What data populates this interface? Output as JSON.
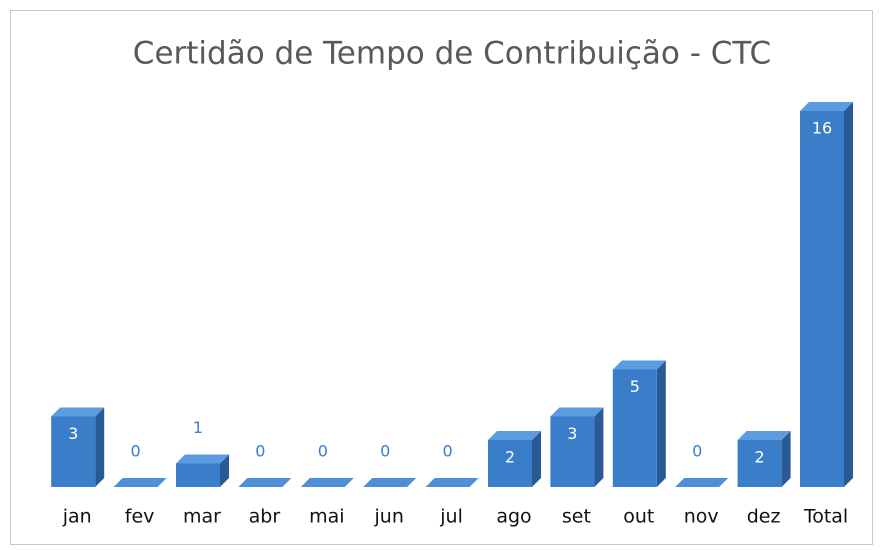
{
  "chart_data": {
    "type": "bar3d",
    "title": "Certidão de Tempo de Contribuição - CTC",
    "categories": [
      "jan",
      "fev",
      "mar",
      "abr",
      "mai",
      "jun",
      "jul",
      "ago",
      "set",
      "out",
      "nov",
      "dez",
      "Total"
    ],
    "values": [
      3,
      0,
      1,
      0,
      0,
      0,
      0,
      2,
      3,
      5,
      0,
      2,
      16
    ],
    "color": "#3a7dc9"
  }
}
